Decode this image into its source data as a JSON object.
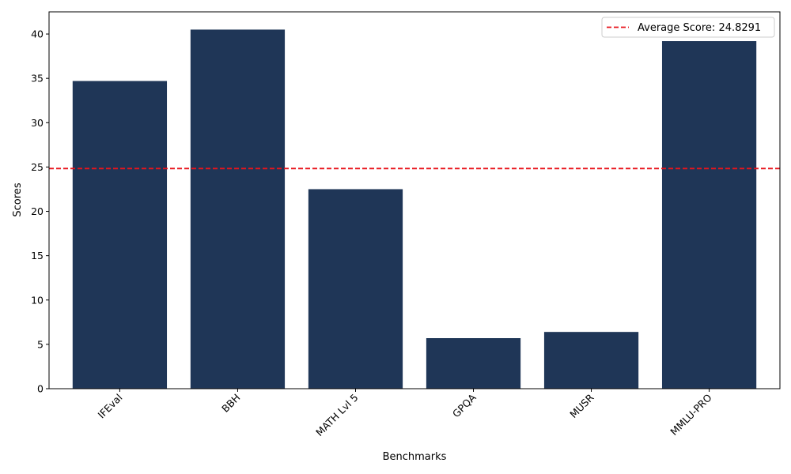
{
  "chart_data": {
    "type": "bar",
    "categories": [
      "IFEval",
      "BBH",
      "MATH Lvl 5",
      "GPQA",
      "MUSR",
      "MMLU-PRO"
    ],
    "values": [
      34.7,
      40.5,
      22.5,
      5.7,
      6.4,
      39.2
    ],
    "xlabel": "Benchmarks",
    "ylabel": "Scores",
    "ylim": [
      0,
      42.5
    ],
    "yticks": [
      0,
      5,
      10,
      15,
      20,
      25,
      30,
      35,
      40
    ],
    "x_tick_rotation_deg": 45,
    "bar_color": "#1f3657",
    "reference_line": {
      "label": "Average Score: 24.8291",
      "value": 24.8291,
      "color": "#e8141b",
      "style": "dashed"
    },
    "legend_position": "top-right",
    "grid": false
  }
}
